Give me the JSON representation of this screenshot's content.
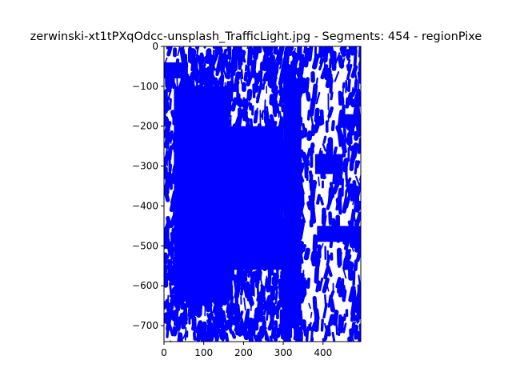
{
  "chart_data": {
    "type": "line",
    "title": "zerwinski-xt1tPXqOdcc-unsplash_TrafficLight.jpg - Segments: 454 - regionPixe",
    "xlabel": "",
    "ylabel": "",
    "xlim": [
      0,
      495
    ],
    "ylim": [
      -740,
      0
    ],
    "xticks": [
      0,
      100,
      200,
      300,
      400
    ],
    "xtick_labels": [
      "0",
      "100",
      "200",
      "300",
      "400"
    ],
    "yticks": [
      0,
      -100,
      -200,
      -300,
      -400,
      -500,
      -600,
      -700
    ],
    "ytick_labels": [
      "0",
      "−100",
      "−200",
      "−300",
      "−400",
      "−500",
      "−600",
      "−700"
    ],
    "grid": false,
    "legend": "none",
    "segment_count": 454,
    "series_color": "#0000ff",
    "background_color": "#ffffff",
    "columns": [
      {
        "x0": 0,
        "x1": 55,
        "density": 0.6
      },
      {
        "x0": 55,
        "x1": 110,
        "density": 0.75
      },
      {
        "x0": 110,
        "x1": 170,
        "density": 0.85
      },
      {
        "x0": 170,
        "x1": 240,
        "density": 0.8
      },
      {
        "x0": 240,
        "x1": 300,
        "density": 0.75
      },
      {
        "x0": 300,
        "x1": 345,
        "density": 0.8
      },
      {
        "x0": 345,
        "x1": 440,
        "density": 0.45
      },
      {
        "x0": 440,
        "x1": 495,
        "density": 0.5
      }
    ],
    "solid_regions": [
      {
        "x": [
          25,
          165
        ],
        "y": [
          -640,
          -100
        ]
      },
      {
        "x": [
          165,
          300
        ],
        "y": [
          -560,
          -200
        ]
      },
      {
        "x": [
          300,
          345
        ],
        "y": [
          -700,
          -80
        ]
      },
      {
        "x": [
          0,
          60
        ],
        "y": [
          -80,
          -40
        ]
      },
      {
        "x": [
          380,
          450
        ],
        "y": [
          -320,
          -270
        ]
      },
      {
        "x": [
          385,
          495
        ],
        "y": [
          -490,
          -450
        ]
      },
      {
        "x": [
          440,
          495
        ],
        "y": [
          -200,
          -170
        ]
      }
    ]
  }
}
